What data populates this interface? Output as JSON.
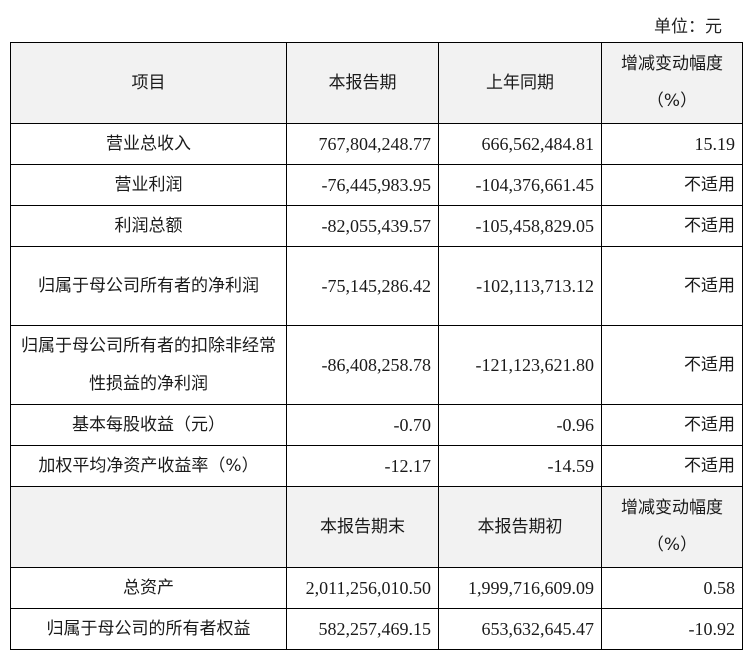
{
  "unit_label": "单位：元",
  "header1": {
    "item": "项目",
    "current": "本报告期",
    "prior": "上年同期",
    "change": "增减变动幅度（%）"
  },
  "rows1": [
    {
      "item": "营业总收入",
      "current": "767,804,248.77",
      "prior": "666,562,484.81",
      "change": "15.19"
    },
    {
      "item": "营业利润",
      "current": "-76,445,983.95",
      "prior": "-104,376,661.45",
      "change": "不适用"
    },
    {
      "item": "利润总额",
      "current": "-82,055,439.57",
      "prior": "-105,458,829.05",
      "change": "不适用"
    },
    {
      "item": "归属于母公司所有者的净利润",
      "current": "-75,145,286.42",
      "prior": "-102,113,713.12",
      "change": "不适用"
    },
    {
      "item": "归属于母公司所有者的扣除非经常性损益的净利润",
      "current": "-86,408,258.78",
      "prior": "-121,123,621.80",
      "change": "不适用"
    },
    {
      "item": "基本每股收益（元）",
      "current": "-0.70",
      "prior": "-0.96",
      "change": "不适用"
    },
    {
      "item": "加权平均净资产收益率（%）",
      "current": "-12.17",
      "prior": "-14.59",
      "change": "不适用"
    }
  ],
  "header2": {
    "item": "",
    "current": "本报告期末",
    "prior": "本报告期初",
    "change": "增减变动幅度（%）"
  },
  "rows2": [
    {
      "item": "总资产",
      "current": "2,011,256,010.50",
      "prior": "1,999,716,609.09",
      "change": "0.58"
    },
    {
      "item": "归属于母公司的所有者权益",
      "current": "582,257,469.15",
      "prior": "653,632,645.47",
      "change": "-10.92"
    }
  ]
}
